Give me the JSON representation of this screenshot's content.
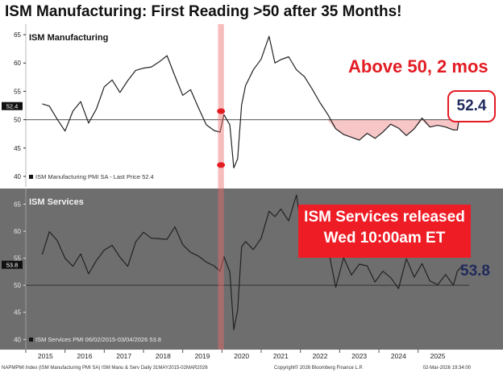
{
  "headline": "ISM Manufacturing: First Reading >50 after 35 Months!",
  "colors": {
    "line": "#222222",
    "below50_fill": "#f7c6c6",
    "highlight_band": "#ee6b6b",
    "accent_red": "#e31b23",
    "value_navy": "#1f2a5c",
    "services_panel_bg": "#6e6e6e",
    "services_banner_bg": "#ee1c25"
  },
  "annotations": {
    "mfg_above": "Above 50, 2 mos",
    "mfg_value": "52.4",
    "services_banner_line1": "ISM Services released",
    "services_banner_line2": "Wed 10:00am ET",
    "services_value": "53.8"
  },
  "footer": {
    "left": "NAPMPMI Index (ISM Manufacturing PMI SA) ISM Manu & Serv Daily 31MAY2015-02MAR2026",
    "center": "Copyright© 2026 Bloomberg Finance L.P.",
    "right": "02-Mar-2026 19:34:00"
  },
  "chart_data": [
    {
      "type": "line",
      "title": "ISM Manufacturing",
      "legend": "ISM Manufacturing PMI SA - Last Price 52.4",
      "last_value_label": "52.4",
      "reference_line": 50,
      "ylim": [
        39,
        66
      ],
      "yticks": [
        40,
        45,
        50,
        55,
        60,
        65
      ],
      "x": [
        2015.42,
        2015.6,
        2015.8,
        2016.0,
        2016.2,
        2016.4,
        2016.6,
        2016.8,
        2017.0,
        2017.2,
        2017.4,
        2017.6,
        2017.8,
        2018.0,
        2018.2,
        2018.4,
        2018.6,
        2018.8,
        2019.0,
        2019.2,
        2019.4,
        2019.6,
        2019.8,
        2019.95,
        2020.05,
        2020.2,
        2020.3,
        2020.4,
        2020.5,
        2020.6,
        2020.8,
        2021.0,
        2021.2,
        2021.35,
        2021.5,
        2021.7,
        2021.9,
        2022.1,
        2022.3,
        2022.5,
        2022.7,
        2022.9,
        2023.1,
        2023.3,
        2023.5,
        2023.7,
        2023.9,
        2024.1,
        2024.3,
        2024.5,
        2024.7,
        2024.9,
        2025.1,
        2025.3,
        2025.5,
        2025.7,
        2025.9,
        2026.0,
        2026.1,
        2026.17
      ],
      "values": [
        52.8,
        52.4,
        50.1,
        48.0,
        51.5,
        53.2,
        49.4,
        51.9,
        55.8,
        57.0,
        54.8,
        56.9,
        58.7,
        59.1,
        59.3,
        60.2,
        61.3,
        57.7,
        54.3,
        55.3,
        52.1,
        49.1,
        48.1,
        47.8,
        50.9,
        49.1,
        41.5,
        43.1,
        52.6,
        56.0,
        58.8,
        60.7,
        64.7,
        60.0,
        60.6,
        61.1,
        58.8,
        57.6,
        55.4,
        53.0,
        50.9,
        48.4,
        47.4,
        46.9,
        46.4,
        47.6,
        46.7,
        47.8,
        49.2,
        48.5,
        47.2,
        48.4,
        50.3,
        48.7,
        49.0,
        48.7,
        48.2,
        48.2,
        52.6,
        52.4
      ],
      "highlight_x": [
        2019.9,
        2020.05
      ]
    },
    {
      "type": "line",
      "title": "ISM Services",
      "legend": "ISM Services PMI 06/02/2015-03/04/2026 53.8",
      "last_value_label": "53.8",
      "reference_line": 50,
      "ylim": [
        39,
        67
      ],
      "yticks": [
        40,
        45,
        50,
        55,
        60,
        65
      ],
      "x": [
        2015.42,
        2015.6,
        2015.8,
        2016.0,
        2016.2,
        2016.4,
        2016.6,
        2016.8,
        2017.0,
        2017.2,
        2017.4,
        2017.6,
        2017.8,
        2018.0,
        2018.2,
        2018.4,
        2018.6,
        2018.8,
        2019.0,
        2019.2,
        2019.4,
        2019.6,
        2019.8,
        2019.95,
        2020.05,
        2020.2,
        2020.3,
        2020.4,
        2020.5,
        2020.6,
        2020.8,
        2021.0,
        2021.2,
        2021.35,
        2021.5,
        2021.7,
        2021.9,
        2022.1,
        2022.3,
        2022.5,
        2022.7,
        2022.9,
        2023.1,
        2023.3,
        2023.5,
        2023.7,
        2023.9,
        2024.1,
        2024.3,
        2024.5,
        2024.7,
        2024.9,
        2025.1,
        2025.3,
        2025.5,
        2025.7,
        2025.9,
        2026.0,
        2026.1,
        2026.17
      ],
      "values": [
        55.7,
        59.9,
        58.3,
        55.0,
        53.5,
        55.8,
        52.1,
        54.6,
        56.5,
        57.4,
        55.2,
        53.5,
        58.0,
        59.8,
        58.7,
        58.6,
        58.5,
        60.8,
        57.5,
        56.1,
        55.4,
        54.3,
        53.6,
        52.6,
        55.3,
        52.5,
        41.8,
        45.4,
        57.1,
        58.1,
        56.6,
        58.7,
        63.7,
        62.7,
        64.1,
        61.9,
        66.7,
        56.5,
        57.1,
        55.3,
        57.0,
        49.6,
        55.1,
        51.9,
        53.9,
        53.6,
        50.6,
        52.6,
        51.4,
        49.4,
        54.9,
        51.5,
        54.0,
        50.8,
        50.1,
        52.0,
        50.0,
        52.6,
        53.4,
        53.8
      ],
      "highlight_x": [
        2019.9,
        2020.05
      ]
    }
  ],
  "x_axis": {
    "ticks": [
      "2015",
      "2016",
      "2017",
      "2018",
      "2019",
      "2020",
      "2021",
      "2022",
      "2023",
      "2024",
      "2025"
    ]
  }
}
